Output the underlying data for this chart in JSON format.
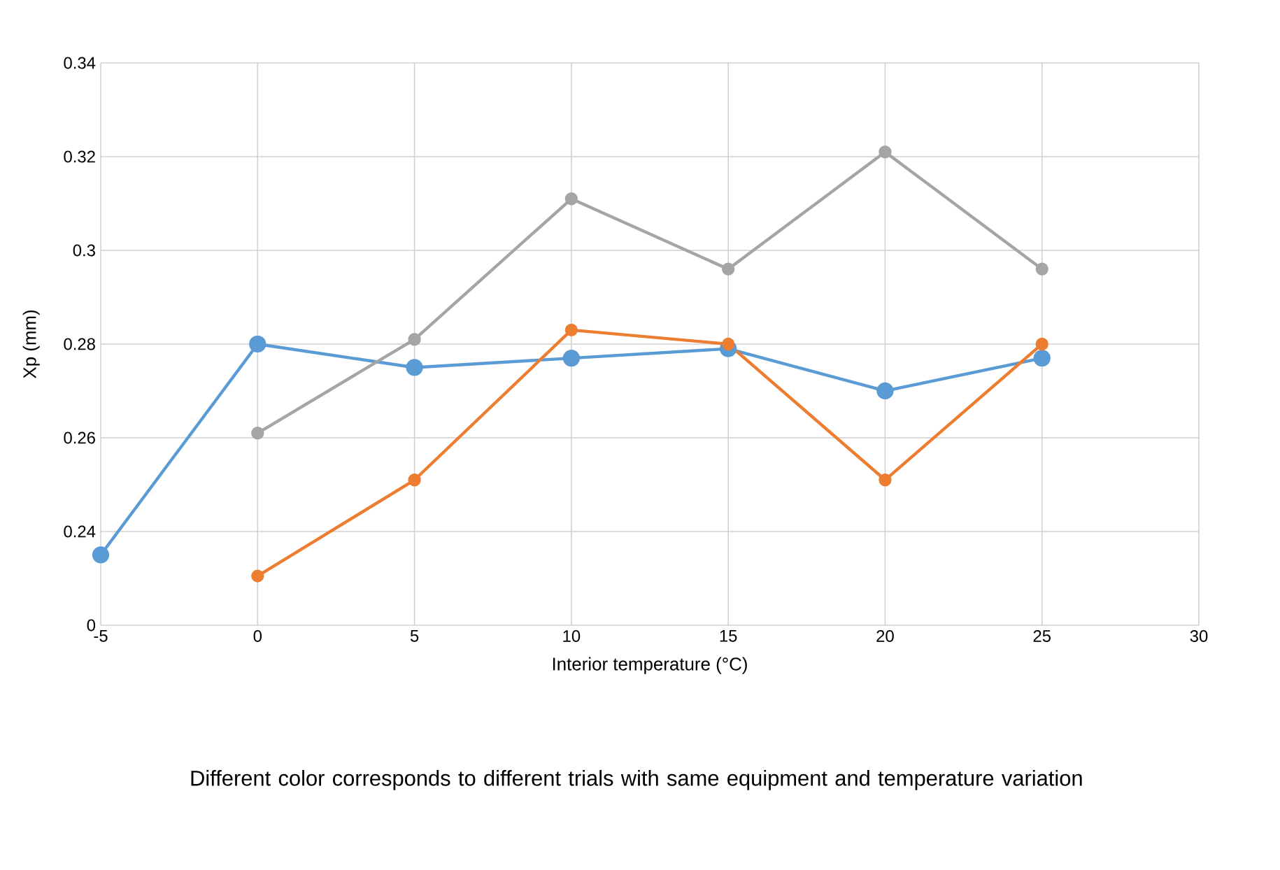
{
  "chart_data": {
    "type": "line",
    "xlabel": "Interior temperature (°C)",
    "ylabel": "Xp (mm)",
    "annotations": [
      "Different color corresponds to different trials with same equipment and temperature variation"
    ],
    "x": [
      -5,
      0,
      5,
      10,
      15,
      20,
      25
    ],
    "series": [
      {
        "color": "#5b9bd5",
        "values": [
          0.235,
          0.28,
          0.275,
          0.277,
          0.279,
          0.27,
          0.277
        ]
      },
      {
        "color": "#ed7d31",
        "values": [
          null,
          0.2305,
          0.251,
          0.283,
          0.28,
          0.251,
          0.28
        ]
      },
      {
        "color": "#a5a5a5",
        "values": [
          null,
          0.261,
          0.281,
          0.311,
          0.296,
          0.321,
          0.296
        ]
      }
    ],
    "xlim": [
      -5,
      30
    ],
    "xticks": [
      -5,
      0,
      5,
      10,
      15,
      20,
      25,
      30
    ],
    "ylim": [
      0.22,
      0.34
    ],
    "yticks": [
      {
        "value": 0.22,
        "label": "0"
      },
      0.24,
      0.26,
      0.28,
      0.3,
      0.32,
      0.34
    ],
    "grid": true,
    "marker": "circle",
    "line_style": "solid"
  }
}
